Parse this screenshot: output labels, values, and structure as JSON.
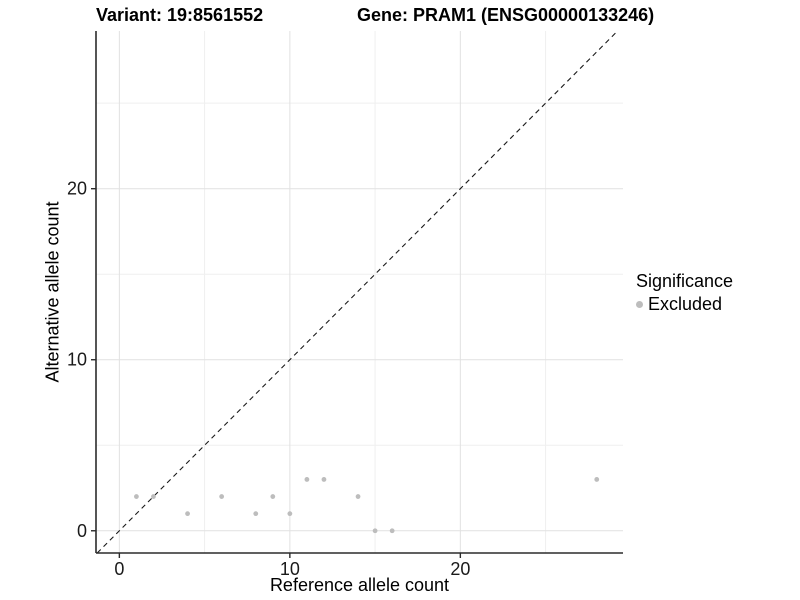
{
  "header": {
    "variant_title": "Variant: 19:8561552",
    "gene_title": "Gene: PRAM1 (ENSG00000133246)"
  },
  "axes": {
    "x": {
      "label": "Reference allele count",
      "ticks": [
        0,
        10,
        20
      ],
      "minor_ticks": [
        5,
        15,
        25
      ],
      "range": [
        -1.37,
        29.54
      ]
    },
    "y": {
      "label": "Alternative allele count",
      "ticks": [
        0,
        10,
        20
      ],
      "minor_ticks": [
        5,
        15,
        25
      ],
      "range": [
        -1.3,
        29.22
      ]
    }
  },
  "legend": {
    "title": "Significance",
    "items": [
      {
        "label": "Excluded",
        "marker": "point-icon",
        "color": "#bdbdbd"
      }
    ]
  },
  "chart_data": {
    "type": "scatter",
    "title": "Variant: 19:8561552 / Gene: PRAM1 (ENSG00000133246)",
    "xlabel": "Reference allele count",
    "ylabel": "Alternative allele count",
    "xlim": [
      -1.37,
      29.54
    ],
    "ylim": [
      -1.3,
      29.22
    ],
    "grid": true,
    "legend_position": "right",
    "series": [
      {
        "name": "Excluded",
        "color": "#bdbdbd",
        "points": [
          [
            1,
            2
          ],
          [
            2,
            2
          ],
          [
            4,
            1
          ],
          [
            6,
            2
          ],
          [
            8,
            1
          ],
          [
            9,
            2
          ],
          [
            10,
            1
          ],
          [
            11,
            3
          ],
          [
            12,
            3
          ],
          [
            14,
            2
          ],
          [
            15,
            0
          ],
          [
            16,
            0
          ],
          [
            28,
            3
          ]
        ]
      }
    ],
    "reference_line": {
      "type": "identity",
      "style": "dashed",
      "color": "#1a1a1a"
    }
  },
  "colors": {
    "point": "#bdbdbd",
    "grid_major": "#e1e1e1",
    "grid_minor": "#efefef",
    "axis": "#2b2b2b",
    "text": "#000000",
    "background": "#ffffff"
  }
}
